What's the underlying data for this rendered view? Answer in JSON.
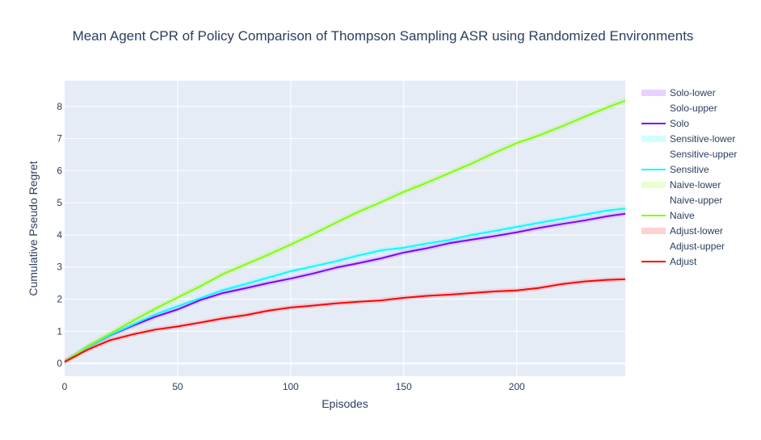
{
  "chart_data": {
    "type": "line",
    "title": "Mean Agent CPR of Policy Comparison of Thompson Sampling ASR using Randomized Environments",
    "xlabel": "Episodes",
    "ylabel": "Cumulative Pseudo Regret",
    "xlim": [
      0,
      248
    ],
    "ylim": [
      -0.4,
      8.8
    ],
    "x_ticks": [
      0,
      50,
      100,
      150,
      200
    ],
    "y_ticks": [
      0,
      1,
      2,
      3,
      4,
      5,
      6,
      7,
      8
    ],
    "grid": true,
    "legend_position": "right",
    "x": [
      0,
      10,
      20,
      30,
      40,
      50,
      60,
      70,
      80,
      90,
      100,
      110,
      120,
      130,
      140,
      150,
      160,
      170,
      180,
      190,
      200,
      210,
      220,
      230,
      240,
      248
    ],
    "series": [
      {
        "name": "Solo",
        "color": "#7f00ff",
        "band_color": "rgba(127,0,255,0.12)",
        "band_names": [
          "Solo-lower",
          "Solo-upper"
        ],
        "values": [
          0.05,
          0.5,
          0.87,
          1.17,
          1.45,
          1.68,
          1.97,
          2.19,
          2.34,
          2.5,
          2.64,
          2.8,
          2.98,
          3.12,
          3.27,
          3.45,
          3.58,
          3.74,
          3.85,
          3.96,
          4.08,
          4.22,
          4.34,
          4.45,
          4.58,
          4.66
        ],
        "half_width": 0.08
      },
      {
        "name": "Sensitive",
        "color": "#00ffff",
        "band_color": "rgba(0,255,255,0.12)",
        "band_names": [
          "Sensitive-lower",
          "Sensitive-upper"
        ],
        "values": [
          0.05,
          0.5,
          0.88,
          1.2,
          1.52,
          1.78,
          2.03,
          2.28,
          2.47,
          2.67,
          2.87,
          3.02,
          3.18,
          3.36,
          3.52,
          3.6,
          3.73,
          3.84,
          4.0,
          4.12,
          4.25,
          4.38,
          4.5,
          4.63,
          4.76,
          4.82
        ],
        "half_width": 0.08
      },
      {
        "name": "Naive",
        "color": "#80ff00",
        "band_color": "rgba(128,255,0,0.14)",
        "band_names": [
          "Naive-lower",
          "Naive-upper"
        ],
        "values": [
          0.05,
          0.52,
          0.92,
          1.32,
          1.7,
          2.05,
          2.4,
          2.78,
          3.08,
          3.38,
          3.7,
          4.03,
          4.38,
          4.72,
          5.02,
          5.34,
          5.62,
          5.92,
          6.22,
          6.55,
          6.86,
          7.1,
          7.38,
          7.68,
          7.97,
          8.18
        ],
        "half_width": 0.1
      },
      {
        "name": "Adjust",
        "color": "#ff0000",
        "band_color": "rgba(255,0,0,0.12)",
        "band_names": [
          "Adjust-lower",
          "Adjust-upper"
        ],
        "values": [
          0.05,
          0.42,
          0.72,
          0.9,
          1.05,
          1.15,
          1.27,
          1.4,
          1.5,
          1.64,
          1.74,
          1.8,
          1.87,
          1.92,
          1.96,
          2.04,
          2.1,
          2.14,
          2.19,
          2.24,
          2.27,
          2.35,
          2.47,
          2.55,
          2.6,
          2.62
        ],
        "half_width": 0.08
      }
    ]
  }
}
